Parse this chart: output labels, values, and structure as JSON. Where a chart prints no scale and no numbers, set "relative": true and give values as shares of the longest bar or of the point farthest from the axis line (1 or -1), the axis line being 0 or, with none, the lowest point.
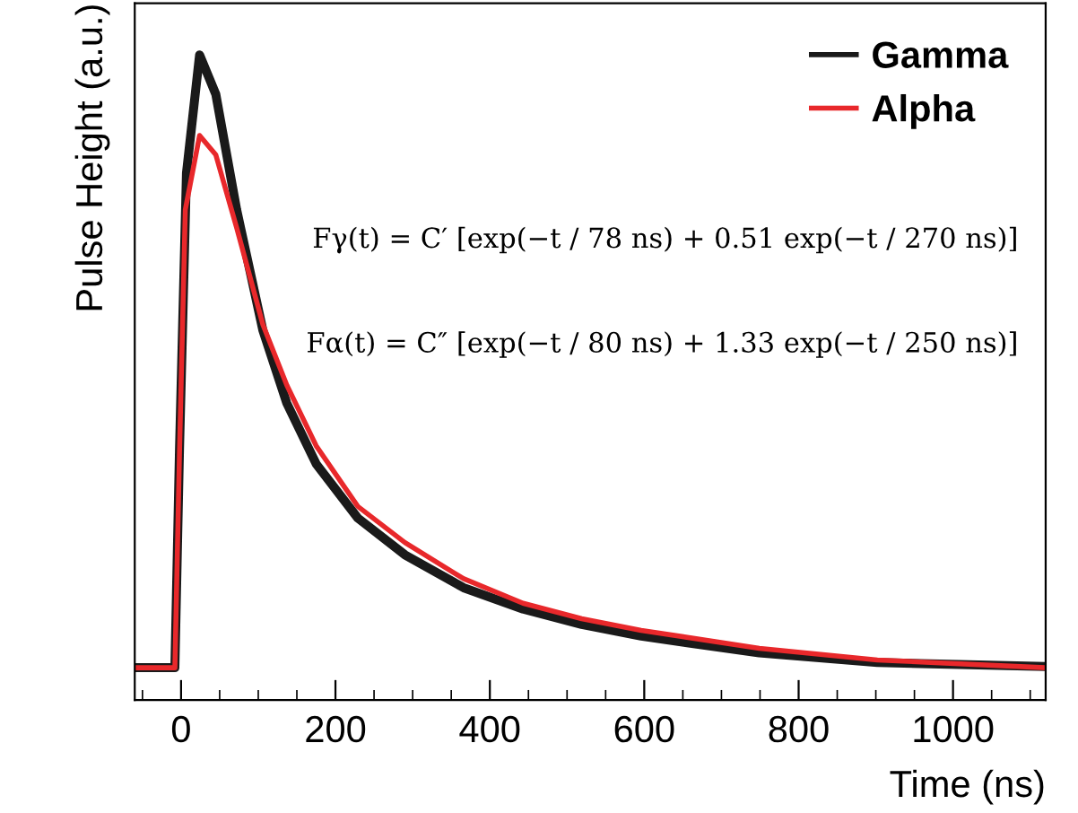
{
  "chart_data": {
    "type": "line",
    "relative": true,
    "xlabel": "Time (ns)",
    "ylabel": "Pulse Height (a.u.)",
    "xlim": [
      -60,
      1120
    ],
    "xticks": [
      0,
      200,
      400,
      600,
      800,
      1000
    ],
    "tick_labels": "x",
    "grid": false,
    "legend": "top right",
    "marker": "none",
    "line_style": "solid",
    "series": [
      {
        "name": "Gamma",
        "color": "#1a1a1a",
        "x": [
          -60,
          -8,
          -2,
          7,
          24,
          45,
          72,
          106,
          137,
          175,
          229,
          290,
          366,
          443,
          519,
          596,
          749,
          902,
          1120
        ],
        "values": [
          0.05,
          0.05,
          0.39,
          0.817,
          1.0,
          0.939,
          0.76,
          0.573,
          0.46,
          0.366,
          0.282,
          0.225,
          0.174,
          0.141,
          0.117,
          0.099,
          0.073,
          0.058,
          0.052
        ]
      },
      {
        "name": "Alpha",
        "color": "#e8282b",
        "x": [
          -60,
          -8,
          -2,
          5.5,
          24,
          45,
          72,
          106,
          137,
          175,
          229,
          290,
          366,
          443,
          519,
          596,
          749,
          902,
          1120
        ],
        "values": [
          0.05,
          0.05,
          0.386,
          0.76,
          0.875,
          0.845,
          0.732,
          0.582,
          0.488,
          0.394,
          0.3,
          0.244,
          0.188,
          0.15,
          0.126,
          0.108,
          0.08,
          0.062,
          0.05
        ]
      }
    ],
    "annotations": [
      "Fγ(t) = C′ [exp(−t / 78 ns) + 0.51 exp(−t / 270 ns)]",
      "Fα(t) = C″ [exp(−t / 80 ns) + 1.33 exp(−t / 250 ns)]"
    ]
  }
}
